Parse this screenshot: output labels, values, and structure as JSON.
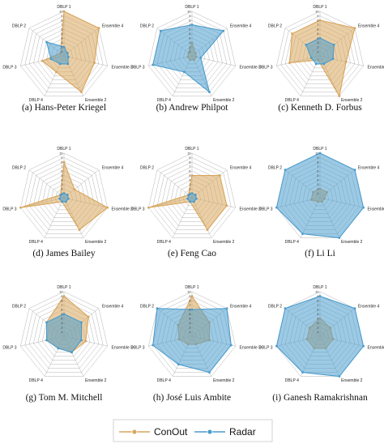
{
  "colors": {
    "ConOut": "#d9a55b",
    "Radar": "#4a9ccd",
    "grid": "#b4b4b4"
  },
  "legend": {
    "items": [
      {
        "label": "ConOut",
        "key": "ConOut"
      },
      {
        "label": "Radar",
        "key": "Radar"
      }
    ]
  },
  "chart_data": [
    {
      "type": "radar",
      "caption": "(a)  Hans-Peter Kriegel",
      "axes": [
        "DBLP 1",
        "Ensemble 4",
        "Ensemble 3",
        "Ensemble 2",
        "DBLP 4",
        "DBLP 3",
        "DBLP 2"
      ],
      "ticks": [
        1,
        2,
        3,
        4,
        5,
        6,
        7,
        8,
        9,
        10
      ],
      "rmax": 10,
      "series": [
        {
          "name": "ConOut",
          "values": [
            10,
            10,
            7,
            9,
            4,
            5,
            1
          ]
        },
        {
          "name": "Radar",
          "values": [
            2,
            1,
            1,
            2,
            2,
            3,
            5
          ]
        }
      ]
    },
    {
      "type": "radar",
      "caption": "(b)  Andrew Philpot",
      "axes": [
        "DBLP 1",
        "Ensemble 4",
        "Ensemble 3",
        "Ensemble 2",
        "DBLP 4",
        "DBLP 3",
        "DBLP 2"
      ],
      "ticks": [
        1,
        2,
        3,
        4,
        5,
        6,
        7,
        8,
        9,
        10
      ],
      "rmax": 10,
      "series": [
        {
          "name": "ConOut",
          "values": [
            3,
            1,
            1,
            1,
            1,
            1,
            1
          ]
        },
        {
          "name": "Radar",
          "values": [
            7,
            9,
            2,
            9,
            4,
            9,
            9
          ]
        }
      ]
    },
    {
      "type": "radar",
      "caption": "(c)  Kenneth D. Forbus",
      "axes": [
        "DBLP 1",
        "Ensemble 4",
        "Ensemble 3",
        "Ensemble 2",
        "DBLP 4",
        "DBLP 3",
        "DBLP 2"
      ],
      "ticks": [
        1,
        2,
        3,
        4,
        5,
        6,
        7,
        8,
        9,
        10
      ],
      "rmax": 10,
      "series": [
        {
          "name": "ConOut",
          "values": [
            8,
            10,
            6,
            10,
            1,
            7,
            8
          ]
        },
        {
          "name": "Radar",
          "values": [
            4,
            4,
            3,
            2,
            2,
            2,
            4
          ]
        }
      ]
    },
    {
      "type": "radar",
      "caption": "(d)  James Bailey",
      "axes": [
        "DBLP 1",
        "Ensemble 4",
        "Ensemble 3",
        "Ensemble 2",
        "DBLP 4",
        "DBLP 3",
        "DBLP 2"
      ],
      "ticks": [
        1,
        2,
        3,
        4,
        5,
        6,
        7,
        8,
        9,
        10
      ],
      "rmax": 10,
      "series": [
        {
          "name": "ConOut",
          "values": [
            8,
            3,
            10,
            8,
            1,
            10,
            1
          ]
        },
        {
          "name": "Radar",
          "values": [
            1,
            1,
            1,
            1,
            1,
            1,
            1
          ]
        }
      ]
    },
    {
      "type": "radar",
      "caption": "(e)  Feng Cao",
      "axes": [
        "DBLP 1",
        "Ensemble 4",
        "Ensemble 3",
        "Ensemble 2",
        "DBLP 4",
        "DBLP 3",
        "DBLP 2"
      ],
      "ticks": [
        1,
        2,
        3,
        4,
        5,
        6,
        7,
        8,
        9,
        10
      ],
      "rmax": 10,
      "series": [
        {
          "name": "ConOut",
          "values": [
            5,
            8,
            8,
            8,
            1,
            10,
            1
          ]
        },
        {
          "name": "Radar",
          "values": [
            1,
            1,
            1,
            1,
            1,
            1,
            1
          ]
        }
      ]
    },
    {
      "type": "radar",
      "caption": "(f)  Li Li",
      "axes": [
        "DBLP 1",
        "Ensemble 4",
        "Ensemble 3",
        "Ensemble 2",
        "DBLP 4",
        "DBLP 3",
        "DBLP 2"
      ],
      "ticks": [
        1,
        2,
        3,
        4,
        5,
        6,
        7,
        8,
        9,
        10
      ],
      "rmax": 10,
      "series": [
        {
          "name": "ConOut",
          "values": [
            2,
            2,
            1,
            1,
            1,
            2,
            2
          ]
        },
        {
          "name": "Radar",
          "values": [
            10,
            10,
            10,
            10,
            9,
            10,
            10
          ]
        }
      ]
    },
    {
      "type": "radar",
      "caption": "(g)  Tom M. Mitchell",
      "axes": [
        "DBLP 1",
        "Ensemble 4",
        "Ensemble 3",
        "Ensemble 2",
        "DBLP 4",
        "DBLP 3",
        "DBLP 2"
      ],
      "ticks": [
        1,
        2,
        3,
        4,
        5,
        6,
        7,
        8,
        9,
        10
      ],
      "rmax": 10,
      "series": [
        {
          "name": "ConOut",
          "values": [
            9,
            7,
            5,
            4,
            3,
            4,
            5
          ]
        },
        {
          "name": "Radar",
          "values": [
            5,
            5,
            4,
            4,
            3,
            4,
            5
          ]
        }
      ]
    },
    {
      "type": "radar",
      "caption": "(h)  José Luis Ambite",
      "axes": [
        "DBLP 1",
        "Ensemble 4",
        "Ensemble 3",
        "Ensemble 2",
        "DBLP 4",
        "DBLP 3",
        "DBLP 2"
      ],
      "ticks": [
        1,
        2,
        3,
        4,
        5,
        6,
        7,
        8,
        9,
        10
      ],
      "rmax": 10,
      "series": [
        {
          "name": "ConOut",
          "values": [
            9,
            5,
            4,
            2,
            2,
            3,
            4
          ]
        },
        {
          "name": "Radar",
          "values": [
            6,
            10,
            9,
            9,
            7,
            9,
            10
          ]
        }
      ]
    },
    {
      "type": "radar",
      "caption": "(i)  Ganesh Ramakrishnan",
      "axes": [
        "DBLP 1",
        "Ensemble 4",
        "Ensemble 3",
        "Ensemble 2",
        "DBLP 4",
        "DBLP 3",
        "DBLP 2"
      ],
      "ticks": [
        1,
        2,
        3,
        4,
        5,
        6,
        7,
        8,
        9,
        10
      ],
      "rmax": 10,
      "series": [
        {
          "name": "ConOut",
          "values": [
            4,
            3,
            3,
            3,
            3,
            3,
            3
          ]
        },
        {
          "name": "Radar",
          "values": [
            9,
            10,
            10,
            10,
            9,
            10,
            10
          ]
        }
      ]
    }
  ]
}
